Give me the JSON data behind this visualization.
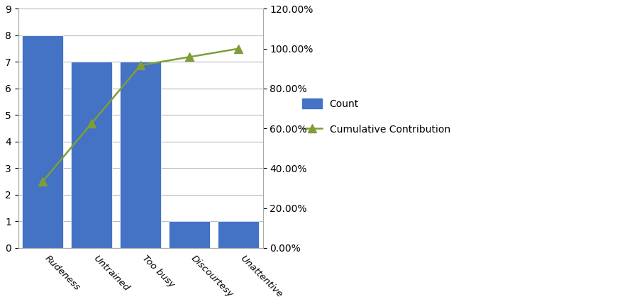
{
  "categories": [
    "Rudeness",
    "Untrained",
    "Too busy",
    "Discourtesy",
    "Unattentive"
  ],
  "counts": [
    8,
    7,
    7,
    1,
    1
  ],
  "cumulative_pct": [
    0.3333,
    0.625,
    0.9167,
    0.9583,
    1.0
  ],
  "bar_color": "#4472C4",
  "line_color": "#7F9E3A",
  "marker_style": "^",
  "left_ylim": [
    0,
    9
  ],
  "left_yticks": [
    0,
    1,
    2,
    3,
    4,
    5,
    6,
    7,
    8,
    9
  ],
  "right_ylim": [
    0.0,
    1.2
  ],
  "right_yticks": [
    0.0,
    0.2,
    0.4,
    0.6,
    0.8,
    1.0,
    1.2
  ],
  "legend_count_label": "Count",
  "legend_line_label": "Cumulative Contribution",
  "bg_color": "#FFFFFF",
  "grid_color": "#BBBBBB",
  "border_color": "#AAAAAA"
}
